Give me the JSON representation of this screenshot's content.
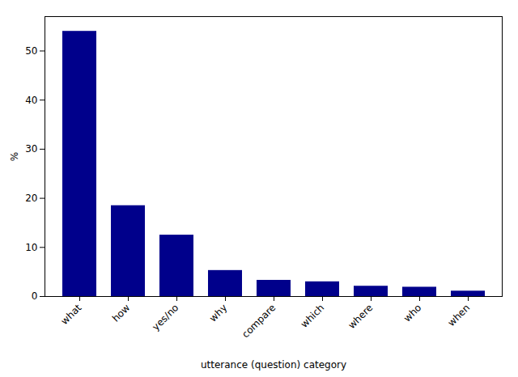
{
  "chart_data": {
    "type": "bar",
    "categories": [
      "what",
      "how",
      "yes/no",
      "why",
      "compare",
      "which",
      "where",
      "who",
      "when"
    ],
    "values": [
      54.0,
      18.5,
      12.5,
      5.3,
      3.3,
      3.0,
      2.1,
      1.9,
      1.1
    ],
    "color": "#00008B",
    "xlabel": "utterance (question) category",
    "ylabel": "%",
    "ylim": [
      0,
      57
    ],
    "yticks": [
      0,
      10,
      20,
      30,
      40,
      50
    ],
    "grid": false
  }
}
